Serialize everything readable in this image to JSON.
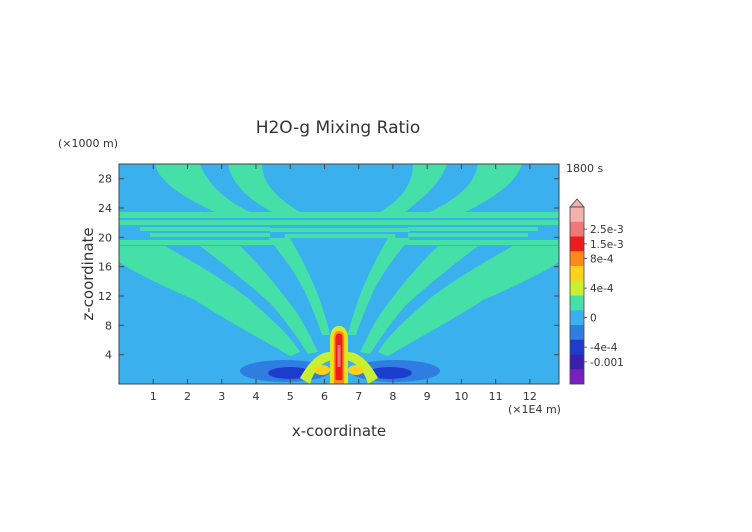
{
  "chart_data": {
    "type": "heatmap",
    "title": "H2O-g Mixing Ratio",
    "xlabel": "x-coordinate",
    "ylabel": "z-coordinate",
    "x_unit": "(×1E4 m)",
    "y_unit": "(×1000 m)",
    "time_label": "1800 s",
    "xlim": [
      0,
      12.85
    ],
    "ylim": [
      0,
      30
    ],
    "xticks": [
      1,
      2,
      3,
      4,
      5,
      6,
      7,
      8,
      9,
      10,
      11,
      12
    ],
    "yticks": [
      4,
      8,
      12,
      16,
      20,
      24,
      28
    ],
    "colorbar": {
      "levels": [
        {
          "value": -0.0014,
          "color": "#7a1fbf"
        },
        {
          "value": -0.001,
          "color": "#3a1fb0"
        },
        {
          "value": -0.0004,
          "color": "#1e3ccc"
        },
        {
          "value": -0.0002,
          "color": "#2f7de0"
        },
        {
          "value": 0.0,
          "color": "#3ab0ef"
        },
        {
          "value": 0.0002,
          "color": "#45e0a8"
        },
        {
          "value": 0.0004,
          "color": "#c8f030"
        },
        {
          "value": 0.0006,
          "color": "#ffd21a"
        },
        {
          "value": 0.0008,
          "color": "#ff8a1a"
        },
        {
          "value": 0.0015,
          "color": "#ee1c1c"
        },
        {
          "value": 0.0025,
          "color": "#f07878"
        },
        {
          "value": 0.003,
          "color": "#f6b0b0"
        }
      ],
      "tick_labels": [
        "2.5e-3",
        "1.5e-3",
        "8e-4",
        "4e-4",
        "0",
        "-4e-4",
        "-0.001"
      ]
    },
    "features": [
      {
        "name": "central plume",
        "x": 6.4,
        "z_top": 7.5,
        "value_max": 0.0025
      },
      {
        "name": "left low-level minimum",
        "x": 4.9,
        "z": 1.3,
        "value_min": -0.001
      },
      {
        "name": "right low-level minimum",
        "x": 7.9,
        "z": 1.3,
        "value_min": -0.001
      },
      {
        "name": "upper moist layers",
        "z_range": [
          19,
          22.5
        ]
      }
    ]
  }
}
